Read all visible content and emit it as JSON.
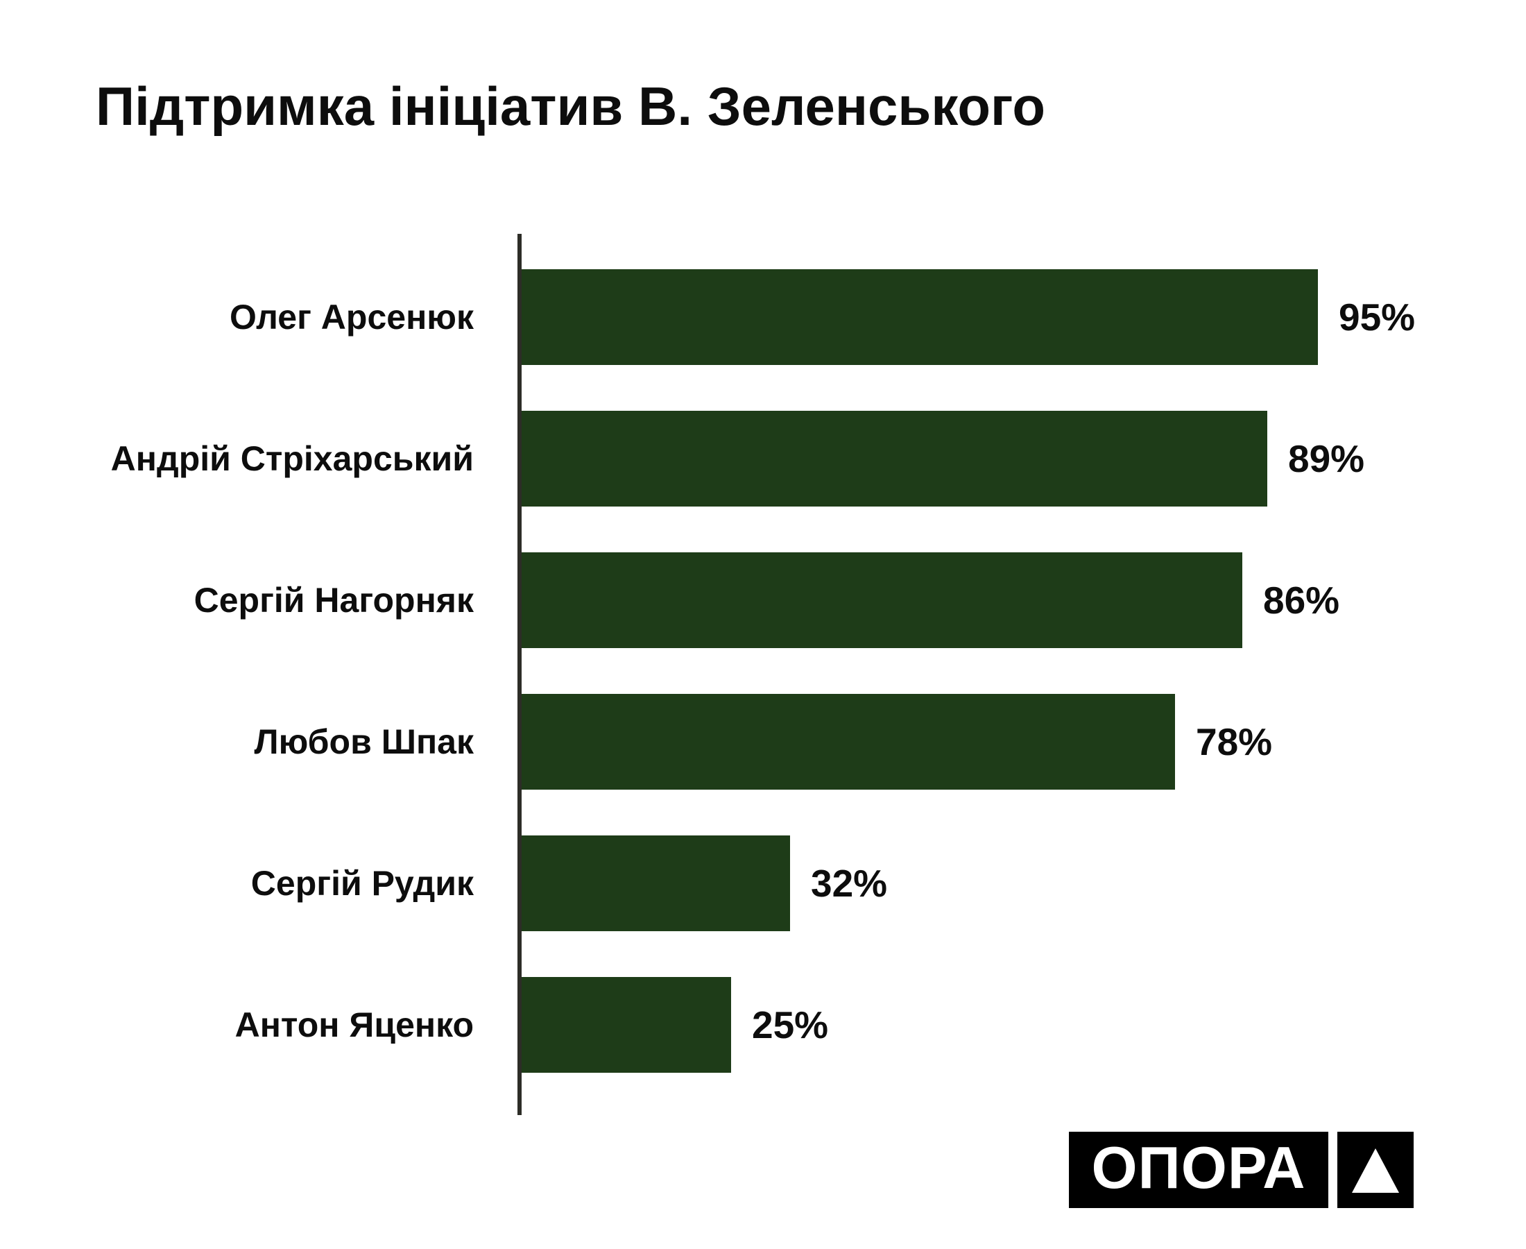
{
  "title": "Підтримка ініціатив В. Зеленського",
  "chart_data": {
    "type": "bar",
    "orientation": "horizontal",
    "title": "Підтримка ініціатив В. Зеленського",
    "categories": [
      "Олег Арсенюк",
      "Андрій Стріхарський",
      "Сергій Нагорняк",
      "Любов Шпак",
      "Сергій Рудик",
      "Антон Яценко"
    ],
    "values": [
      95,
      89,
      86,
      78,
      32,
      25
    ],
    "value_labels": [
      "95%",
      "89%",
      "86%",
      "78%",
      "32%",
      "25%"
    ],
    "unit": "%",
    "xlim": [
      0,
      100
    ],
    "grid": false,
    "legend": false,
    "bar_color": "#1e3c18",
    "axis_color": "#2d2d27",
    "label_color": "#0d0d0d"
  },
  "logo": {
    "text": "ОПОРА",
    "symbol": "triangle-up",
    "background": "#000000",
    "foreground": "#ffffff"
  },
  "colors": {
    "page_background": "#ffffff",
    "title_text": "#0d0d0d"
  }
}
